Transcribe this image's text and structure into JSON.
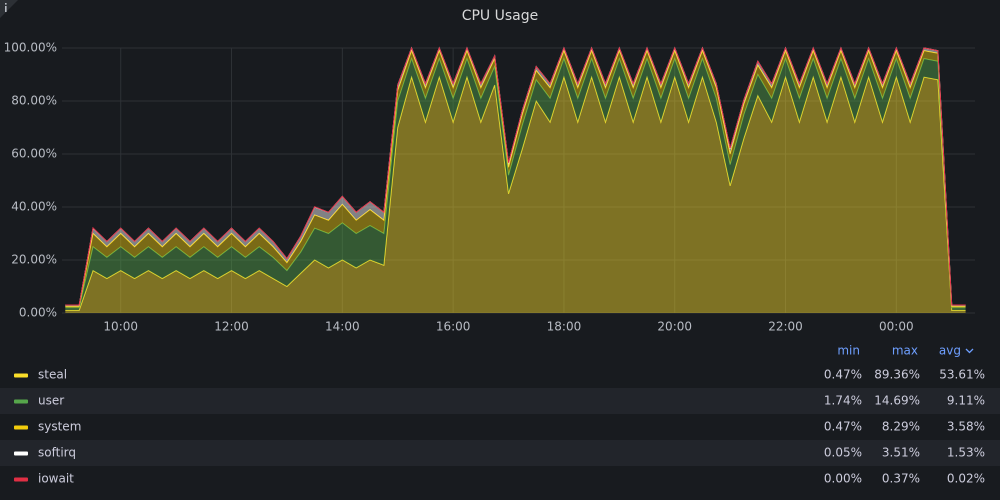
{
  "chart_data": {
    "type": "stacked-area",
    "title": "CPU Usage",
    "x": [
      9,
      9.25,
      9.5,
      9.75,
      10,
      10.25,
      10.5,
      10.75,
      11,
      11.25,
      11.5,
      11.75,
      12,
      12.25,
      12.5,
      12.75,
      13,
      13.25,
      13.5,
      13.75,
      14,
      14.25,
      14.5,
      14.75,
      15,
      15.25,
      15.5,
      15.75,
      16,
      16.25,
      16.5,
      16.75,
      17,
      17.25,
      17.5,
      17.75,
      18,
      18.25,
      18.5,
      18.75,
      19,
      19.25,
      19.5,
      19.75,
      20,
      20.25,
      20.5,
      20.75,
      21,
      21.25,
      21.5,
      21.75,
      22,
      22.25,
      22.5,
      22.75,
      23,
      23.25,
      23.5,
      23.75,
      24,
      24.25,
      24.5,
      24.75,
      25,
      25.25
    ],
    "xlim": [
      8.94,
      25.42
    ],
    "xticks": [
      {
        "value": 10,
        "label": "10:00"
      },
      {
        "value": 12,
        "label": "12:00"
      },
      {
        "value": 14,
        "label": "14:00"
      },
      {
        "value": 16,
        "label": "16:00"
      },
      {
        "value": 18,
        "label": "18:00"
      },
      {
        "value": 20,
        "label": "20:00"
      },
      {
        "value": 22,
        "label": "22:00"
      },
      {
        "value": 24,
        "label": "00:00"
      }
    ],
    "ylim": [
      0,
      100
    ],
    "yticks": [
      {
        "value": 0,
        "label": "0.00%"
      },
      {
        "value": 20,
        "label": "20.00%"
      },
      {
        "value": 40,
        "label": "40.00%"
      },
      {
        "value": 60,
        "label": "60.00%"
      },
      {
        "value": 80,
        "label": "80.00%"
      },
      {
        "value": 100,
        "label": "100.00%"
      }
    ],
    "grid": true,
    "fill_opacity": 0.45,
    "legend_columns": [
      "min",
      "max",
      "avg"
    ],
    "series": [
      {
        "name": "steal",
        "color": "#fade2a",
        "legend_values": [
          "0.47%",
          "89.36%",
          "53.61%"
        ],
        "values": [
          1,
          1,
          16,
          13,
          16,
          13,
          16,
          13,
          16,
          13,
          16,
          13,
          16,
          13,
          16,
          13,
          10,
          15,
          20,
          17,
          20,
          17,
          20,
          18,
          70,
          89,
          72,
          89,
          72,
          89,
          72,
          86,
          45,
          62,
          80,
          72,
          89,
          72,
          89,
          72,
          89,
          72,
          89,
          72,
          89,
          72,
          89,
          72,
          48,
          66,
          82,
          72,
          89,
          72,
          89,
          72,
          89,
          72,
          89,
          72,
          89,
          72,
          89,
          88,
          1,
          1
        ]
      },
      {
        "name": "user",
        "color": "#56a64b",
        "legend_values": [
          "1.74%",
          "14.69%",
          "9.11%"
        ],
        "values": [
          1,
          1,
          9,
          8,
          9,
          8,
          9,
          8,
          9,
          8,
          9,
          8,
          9,
          8,
          9,
          8,
          6,
          8,
          12,
          13,
          14,
          13,
          13,
          12,
          10,
          7,
          9,
          7,
          9,
          7,
          9,
          7,
          7,
          9,
          8,
          9,
          7,
          9,
          7,
          9,
          7,
          9,
          7,
          9,
          7,
          9,
          7,
          9,
          8,
          9,
          8,
          9,
          7,
          9,
          7,
          9,
          7,
          9,
          7,
          9,
          7,
          9,
          7,
          7,
          1,
          1
        ]
      },
      {
        "name": "system",
        "color": "#f2cc0c",
        "legend_values": [
          "0.47%",
          "8.29%",
          "3.58%"
        ],
        "values": [
          0.5,
          0.5,
          5,
          4,
          5,
          4,
          5,
          4,
          5,
          4,
          5,
          4,
          5,
          4,
          5,
          4,
          3,
          4,
          5,
          5,
          7,
          5,
          6,
          5,
          4,
          3,
          4,
          3,
          4,
          3,
          4,
          3,
          3,
          4,
          3.5,
          4,
          3,
          4,
          3,
          4,
          3,
          4,
          3,
          4,
          3,
          4,
          3,
          4,
          4,
          4,
          3.5,
          4,
          3,
          4,
          3,
          4,
          3,
          4,
          3,
          4,
          3,
          4,
          3,
          3,
          0.5,
          0.5
        ]
      },
      {
        "name": "softirq",
        "color": "#ffffff",
        "legend_values": [
          "0.05%",
          "3.51%",
          "1.53%"
        ],
        "values": [
          0.5,
          0.5,
          2,
          2,
          2,
          2,
          2,
          2,
          2,
          2,
          2,
          2,
          2,
          2,
          2,
          2,
          1.5,
          2,
          3,
          3,
          3,
          3,
          3,
          3,
          2,
          1,
          1.5,
          1,
          1.5,
          1,
          1.5,
          1,
          1.5,
          1.5,
          1.5,
          1.5,
          1,
          1.5,
          1,
          1.5,
          1,
          1.5,
          1,
          1.5,
          1,
          1.5,
          1,
          1.5,
          2,
          1.5,
          1.5,
          1.5,
          1,
          1.5,
          1,
          1.5,
          1,
          1.5,
          1,
          1.5,
          1,
          1.5,
          1,
          1,
          0.5,
          0.5
        ]
      },
      {
        "name": "iowait",
        "color": "#e02f44",
        "legend_values": [
          "0.00%",
          "0.37%",
          "0.02%"
        ],
        "values": [
          0,
          0,
          0.1,
          0,
          0,
          0,
          0,
          0,
          0,
          0,
          0,
          0,
          0,
          0,
          0,
          0,
          0,
          0,
          0.1,
          0,
          0,
          0,
          0,
          0,
          0,
          0,
          0,
          0,
          0,
          0,
          0,
          0,
          0.2,
          0,
          0,
          0,
          0,
          0,
          0,
          0,
          0,
          0,
          0,
          0,
          0,
          0,
          0,
          0,
          0.2,
          0,
          0,
          0,
          0,
          0,
          0,
          0,
          0,
          0,
          0,
          0,
          0,
          0,
          0,
          0,
          0,
          0
        ]
      }
    ]
  }
}
